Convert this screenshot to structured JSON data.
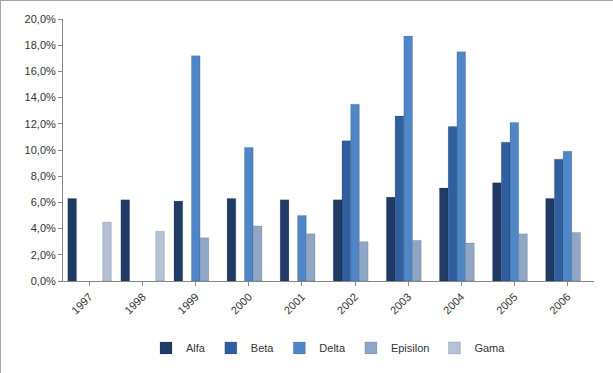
{
  "chart_data": {
    "type": "bar",
    "categories": [
      "1997",
      "1998",
      "1999",
      "2000",
      "2001",
      "2002",
      "2003",
      "2004",
      "2005",
      "2006"
    ],
    "series": [
      {
        "name": "Alfa",
        "color": "#1f3b66",
        "values": [
          6.3,
          6.2,
          6.1,
          6.3,
          6.2,
          6.2,
          6.4,
          7.1,
          7.5,
          6.3
        ]
      },
      {
        "name": "Beta",
        "color": "#2f5f9e",
        "values": [
          null,
          null,
          null,
          null,
          null,
          10.7,
          12.6,
          11.8,
          10.6,
          9.3
        ]
      },
      {
        "name": "Delta",
        "color": "#4f86c6",
        "values": [
          null,
          null,
          17.2,
          10.2,
          5.0,
          13.5,
          18.7,
          17.5,
          12.1,
          9.9
        ]
      },
      {
        "name": "Episilon",
        "color": "#8fa6c6",
        "values": [
          null,
          null,
          3.3,
          4.2,
          3.6,
          3.0,
          3.1,
          2.9,
          3.6,
          3.7
        ]
      },
      {
        "name": "Gama",
        "color": "#b4c1d6",
        "values": [
          4.5,
          3.8,
          null,
          null,
          null,
          null,
          null,
          null,
          null,
          null
        ]
      }
    ],
    "ylim": [
      0,
      20
    ],
    "yticks": [
      {
        "value": 0,
        "label": "0,0%"
      },
      {
        "value": 2,
        "label": "2,0%"
      },
      {
        "value": 4,
        "label": "4,0%"
      },
      {
        "value": 6,
        "label": "6,0%"
      },
      {
        "value": 8,
        "label": "8,0%"
      },
      {
        "value": 10,
        "label": "10,0%"
      },
      {
        "value": 12,
        "label": "12,0%"
      },
      {
        "value": 14,
        "label": "14,0%"
      },
      {
        "value": 16,
        "label": "16,0%"
      },
      {
        "value": 18,
        "label": "18,0%"
      },
      {
        "value": 20,
        "label": "20,0%"
      }
    ],
    "grid": false,
    "legend": "bottom"
  }
}
